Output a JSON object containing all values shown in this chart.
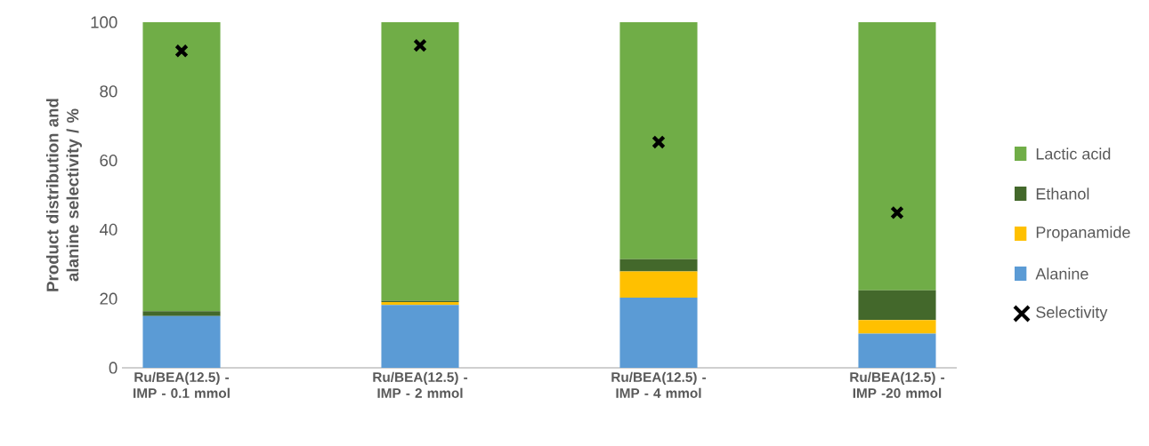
{
  "chart_data": {
    "type": "bar",
    "stacked": true,
    "ylabel": "Product distribution and alanine selectivity / %",
    "categories": [
      "Ru/BEA(12.5) - IMP - 0.1 mmol",
      "Ru/BEA(12.5) - IMP - 2 mmol",
      "Ru/BEA(12.5) - IMP - 4 mmol",
      "Ru/BEA(12.5) - IMP -20 mmol"
    ],
    "series": [
      {
        "name": "Alanine",
        "color": "#5b9bd5",
        "values": [
          15.0,
          18.2,
          20.3,
          9.9
        ]
      },
      {
        "name": "Propanamide",
        "color": "#ffc000",
        "values": [
          0,
          0.8,
          7.6,
          3.9
        ]
      },
      {
        "name": "Ethanol",
        "color": "#43682b",
        "values": [
          1.4,
          0.4,
          3.5,
          8.6
        ]
      },
      {
        "name": "Lactic acid",
        "color": "#70ad47",
        "values": [
          83.6,
          80.6,
          68.6,
          77.6
        ]
      },
      {
        "name": "Selectivity",
        "type": "scatter",
        "marker": "cross",
        "color": "#000000",
        "values": [
          91.7,
          93.3,
          65.3,
          44.9
        ]
      }
    ],
    "ylim": [
      0,
      100
    ],
    "yticks": [
      0,
      20,
      40,
      60,
      80,
      100
    ],
    "grid": false,
    "legend": "right"
  }
}
